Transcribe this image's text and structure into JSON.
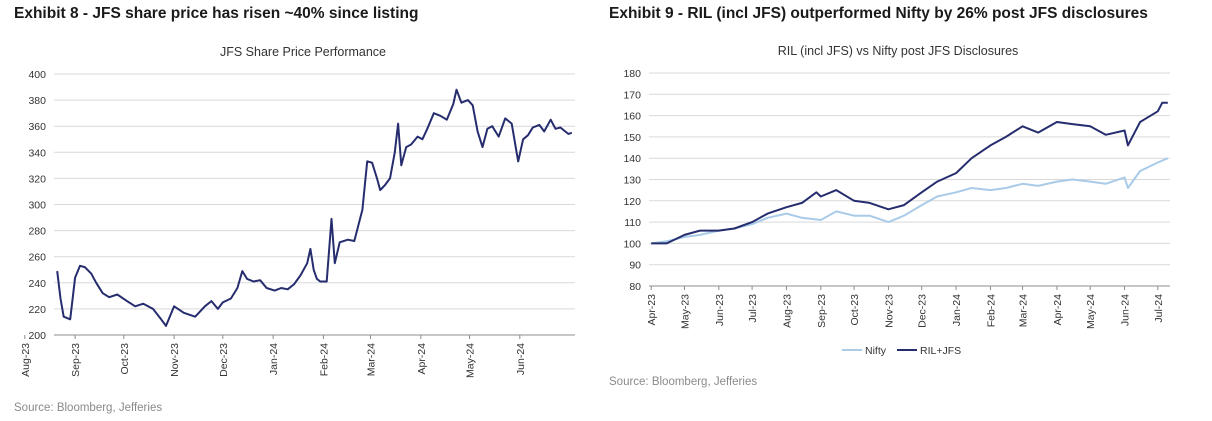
{
  "exhibits": [
    {
      "title": "Exhibit 8 - JFS share price has risen ~40% since listing",
      "source": "Source: Bloomberg, Jefferies"
    },
    {
      "title": "Exhibit 9 - RIL (incl JFS) outperformed Nifty by 26% post JFS disclosures",
      "source": "Source: Bloomberg, Jefferies"
    }
  ],
  "colors": {
    "navy": "#262d6e",
    "light_blue": "#a9cbe8",
    "grid": "#d9d9d9",
    "axis": "#8c8c8c"
  },
  "chart_data": [
    {
      "type": "line",
      "title": "JFS Share Price Performance",
      "xlabel": "",
      "ylabel": "",
      "ylim": [
        200,
        400
      ],
      "yticks": [
        200,
        220,
        240,
        260,
        280,
        300,
        320,
        340,
        360,
        380,
        400
      ],
      "x_tick_labels": [
        "Aug-23",
        "Sep-23",
        "Oct-23",
        "Nov-23",
        "Dec-23",
        "Jan-24",
        "Feb-24",
        "Mar-24",
        "Apr-24",
        "May-24",
        "Jun-24"
      ],
      "grid": true,
      "series": [
        {
          "color": "#262d6e",
          "points": [
            [
              "2023-08-21",
              249
            ],
            [
              "2023-08-23",
              228
            ],
            [
              "2023-08-25",
              214
            ],
            [
              "2023-08-29",
              212
            ],
            [
              "2023-09-01",
              244
            ],
            [
              "2023-09-04",
              253
            ],
            [
              "2023-09-07",
              252
            ],
            [
              "2023-09-11",
              247
            ],
            [
              "2023-09-14",
              240
            ],
            [
              "2023-09-18",
              232
            ],
            [
              "2023-09-22",
              229
            ],
            [
              "2023-09-27",
              231
            ],
            [
              "2023-10-03",
              226
            ],
            [
              "2023-10-08",
              222
            ],
            [
              "2023-10-13",
              224
            ],
            [
              "2023-10-19",
              220
            ],
            [
              "2023-10-24",
              212
            ],
            [
              "2023-10-27",
              207
            ],
            [
              "2023-11-01",
              222
            ],
            [
              "2023-11-07",
              217
            ],
            [
              "2023-11-14",
              214
            ],
            [
              "2023-11-20",
              222
            ],
            [
              "2023-11-24",
              226
            ],
            [
              "2023-11-28",
              220
            ],
            [
              "2023-12-01",
              225
            ],
            [
              "2023-12-06",
              228
            ],
            [
              "2023-12-10",
              236
            ],
            [
              "2023-12-13",
              249
            ],
            [
              "2023-12-16",
              243
            ],
            [
              "2023-12-20",
              241
            ],
            [
              "2023-12-24",
              242
            ],
            [
              "2023-12-28",
              236
            ],
            [
              "2024-01-02",
              234
            ],
            [
              "2024-01-06",
              236
            ],
            [
              "2024-01-10",
              235
            ],
            [
              "2024-01-14",
              239
            ],
            [
              "2024-01-18",
              246
            ],
            [
              "2024-01-22",
              255
            ],
            [
              "2024-01-24",
              266
            ],
            [
              "2024-01-26",
              250
            ],
            [
              "2024-01-28",
              243
            ],
            [
              "2024-01-30",
              241
            ],
            [
              "2024-02-03",
              241
            ],
            [
              "2024-02-06",
              289
            ],
            [
              "2024-02-08",
              255
            ],
            [
              "2024-02-11",
              271
            ],
            [
              "2024-02-16",
              273
            ],
            [
              "2024-02-20",
              272
            ],
            [
              "2024-02-25",
              296
            ],
            [
              "2024-02-28",
              333
            ],
            [
              "2024-03-02",
              332
            ],
            [
              "2024-03-05",
              320
            ],
            [
              "2024-03-07",
              311
            ],
            [
              "2024-03-10",
              315
            ],
            [
              "2024-03-13",
              320
            ],
            [
              "2024-03-16",
              340
            ],
            [
              "2024-03-18",
              362
            ],
            [
              "2024-03-20",
              330
            ],
            [
              "2024-03-23",
              344
            ],
            [
              "2024-03-26",
              346
            ],
            [
              "2024-03-30",
              352
            ],
            [
              "2024-04-02",
              350
            ],
            [
              "2024-04-05",
              358
            ],
            [
              "2024-04-09",
              370
            ],
            [
              "2024-04-13",
              368
            ],
            [
              "2024-04-17",
              365
            ],
            [
              "2024-04-21",
              377
            ],
            [
              "2024-04-23",
              388
            ],
            [
              "2024-04-26",
              378
            ],
            [
              "2024-04-30",
              380
            ],
            [
              "2024-05-03",
              376
            ],
            [
              "2024-05-06",
              356
            ],
            [
              "2024-05-09",
              344
            ],
            [
              "2024-05-12",
              358
            ],
            [
              "2024-05-15",
              360
            ],
            [
              "2024-05-19",
              352
            ],
            [
              "2024-05-23",
              366
            ],
            [
              "2024-05-27",
              362
            ],
            [
              "2024-05-30",
              340
            ],
            [
              "2024-05-31",
              333
            ],
            [
              "2024-06-03",
              350
            ],
            [
              "2024-06-06",
              353
            ],
            [
              "2024-06-09",
              359
            ],
            [
              "2024-06-13",
              361
            ],
            [
              "2024-06-16",
              356
            ],
            [
              "2024-06-20",
              365
            ],
            [
              "2024-06-23",
              358
            ],
            [
              "2024-06-26",
              359
            ],
            [
              "2024-06-28",
              357
            ],
            [
              "2024-07-01",
              354
            ],
            [
              "2024-07-03",
              355
            ]
          ]
        }
      ]
    },
    {
      "type": "line",
      "title": "RIL (incl JFS) vs Nifty post JFS Disclosures",
      "xlabel": "",
      "ylabel": "",
      "ylim": [
        80,
        180
      ],
      "yticks": [
        80,
        90,
        100,
        110,
        120,
        130,
        140,
        150,
        160,
        170,
        180
      ],
      "x_tick_labels": [
        "Apr-23",
        "May-23",
        "Jun-23",
        "Jul-23",
        "Aug-23",
        "Sep-23",
        "Oct-23",
        "Nov-23",
        "Dec-23",
        "Jan-24",
        "Feb-24",
        "Mar-24",
        "Apr-24",
        "May-24",
        "Jun-24",
        "Jul-24"
      ],
      "grid": true,
      "legend_position": "bottom-center",
      "series": [
        {
          "name": "Nifty",
          "color": "#a9cbe8",
          "points": [
            [
              "2023-04-01",
              100
            ],
            [
              "2023-04-15",
              101
            ],
            [
              "2023-05-01",
              103
            ],
            [
              "2023-05-15",
              104
            ],
            [
              "2023-06-01",
              106
            ],
            [
              "2023-06-15",
              107
            ],
            [
              "2023-07-01",
              109
            ],
            [
              "2023-07-15",
              112
            ],
            [
              "2023-08-01",
              114
            ],
            [
              "2023-08-15",
              112
            ],
            [
              "2023-09-01",
              111
            ],
            [
              "2023-09-15",
              115
            ],
            [
              "2023-10-01",
              113
            ],
            [
              "2023-10-15",
              113
            ],
            [
              "2023-11-01",
              110
            ],
            [
              "2023-11-15",
              113
            ],
            [
              "2023-12-01",
              118
            ],
            [
              "2023-12-15",
              122
            ],
            [
              "2024-01-01",
              124
            ],
            [
              "2024-01-15",
              126
            ],
            [
              "2024-02-01",
              125
            ],
            [
              "2024-02-15",
              126
            ],
            [
              "2024-03-01",
              128
            ],
            [
              "2024-03-15",
              127
            ],
            [
              "2024-04-01",
              129
            ],
            [
              "2024-04-15",
              130
            ],
            [
              "2024-05-01",
              129
            ],
            [
              "2024-05-15",
              128
            ],
            [
              "2024-06-01",
              131
            ],
            [
              "2024-06-04",
              126
            ],
            [
              "2024-06-15",
              134
            ],
            [
              "2024-07-01",
              138
            ],
            [
              "2024-07-10",
              140
            ]
          ]
        },
        {
          "name": "RIL+JFS",
          "color": "#262d6e",
          "points": [
            [
              "2023-04-01",
              100
            ],
            [
              "2023-04-15",
              100
            ],
            [
              "2023-05-01",
              104
            ],
            [
              "2023-05-15",
              106
            ],
            [
              "2023-06-01",
              106
            ],
            [
              "2023-06-15",
              107
            ],
            [
              "2023-07-01",
              110
            ],
            [
              "2023-07-15",
              114
            ],
            [
              "2023-08-01",
              117
            ],
            [
              "2023-08-15",
              119
            ],
            [
              "2023-08-28",
              124
            ],
            [
              "2023-09-01",
              122
            ],
            [
              "2023-09-15",
              125
            ],
            [
              "2023-10-01",
              120
            ],
            [
              "2023-10-15",
              119
            ],
            [
              "2023-11-01",
              116
            ],
            [
              "2023-11-15",
              118
            ],
            [
              "2023-12-01",
              124
            ],
            [
              "2023-12-15",
              129
            ],
            [
              "2024-01-01",
              133
            ],
            [
              "2024-01-15",
              140
            ],
            [
              "2024-02-01",
              146
            ],
            [
              "2024-02-15",
              150
            ],
            [
              "2024-03-01",
              155
            ],
            [
              "2024-03-15",
              152
            ],
            [
              "2024-04-01",
              157
            ],
            [
              "2024-04-15",
              156
            ],
            [
              "2024-05-01",
              155
            ],
            [
              "2024-05-15",
              151
            ],
            [
              "2024-06-01",
              153
            ],
            [
              "2024-06-04",
              146
            ],
            [
              "2024-06-15",
              157
            ],
            [
              "2024-07-01",
              162
            ],
            [
              "2024-07-05",
              166
            ],
            [
              "2024-07-10",
              166
            ]
          ]
        }
      ]
    }
  ]
}
